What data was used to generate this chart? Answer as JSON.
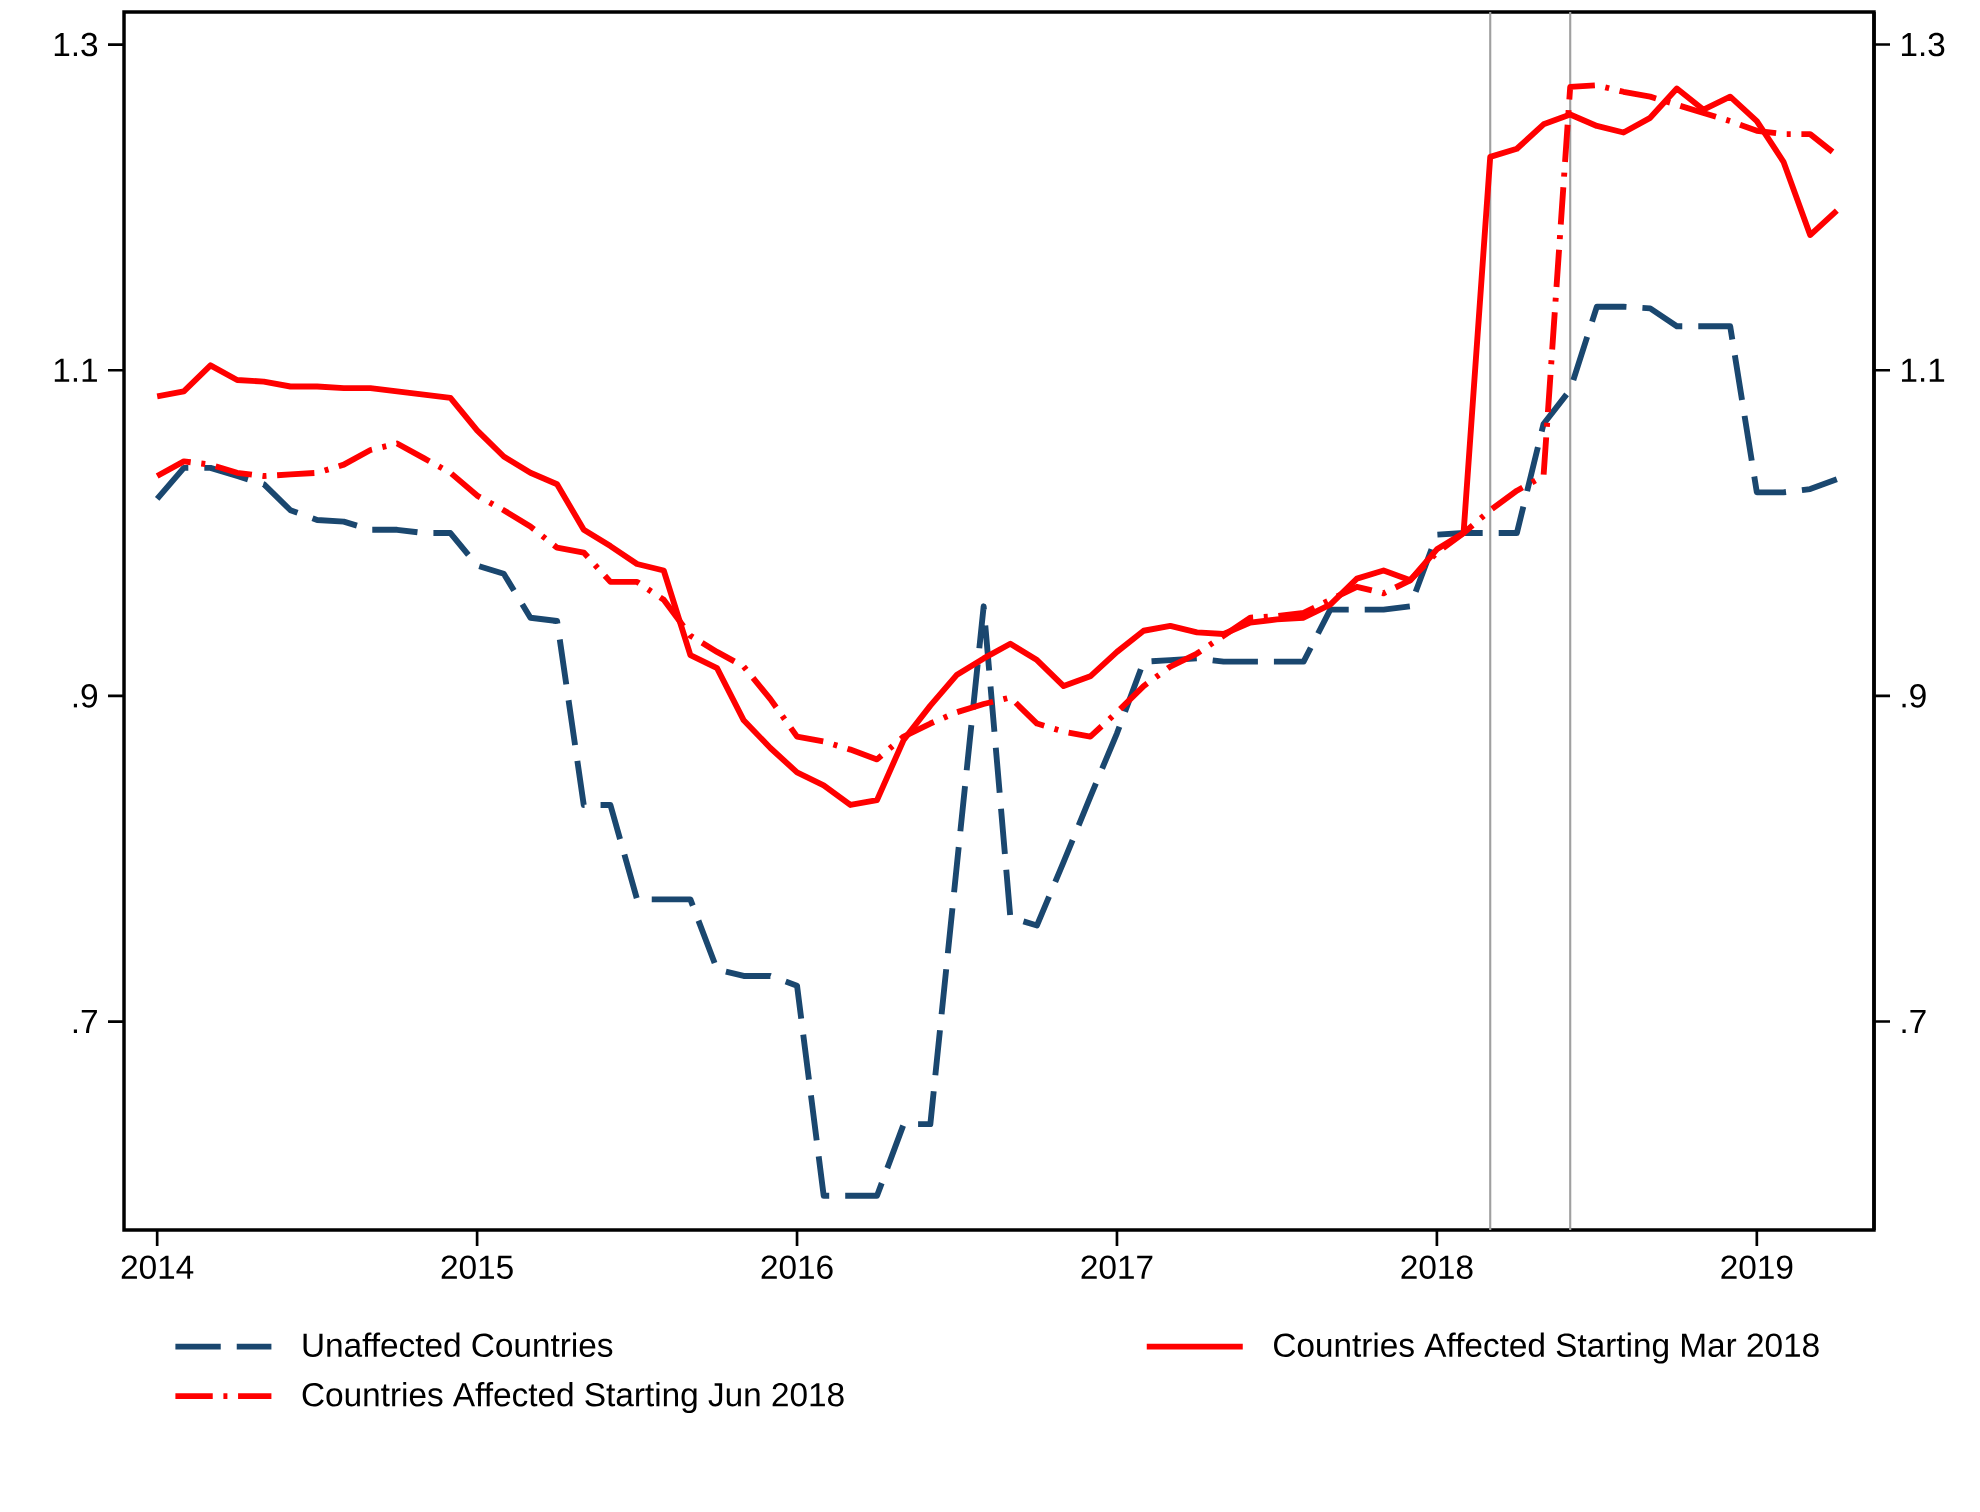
{
  "chart_data": {
    "type": "line",
    "x": [
      "2014-01",
      "2014-02",
      "2014-03",
      "2014-04",
      "2014-05",
      "2014-06",
      "2014-07",
      "2014-08",
      "2014-09",
      "2014-10",
      "2014-11",
      "2014-12",
      "2015-01",
      "2015-02",
      "2015-03",
      "2015-04",
      "2015-05",
      "2015-06",
      "2015-07",
      "2015-08",
      "2015-09",
      "2015-10",
      "2015-11",
      "2015-12",
      "2016-01",
      "2016-02",
      "2016-03",
      "2016-04",
      "2016-05",
      "2016-06",
      "2016-07",
      "2016-08",
      "2016-09",
      "2016-10",
      "2016-11",
      "2016-12",
      "2017-01",
      "2017-02",
      "2017-03",
      "2017-04",
      "2017-05",
      "2017-06",
      "2017-07",
      "2017-08",
      "2017-09",
      "2017-10",
      "2017-11",
      "2017-12",
      "2018-01",
      "2018-02",
      "2018-03",
      "2018-04",
      "2018-05",
      "2018-06",
      "2018-07",
      "2018-08",
      "2018-09",
      "2018-10",
      "2018-11",
      "2018-12",
      "2019-01",
      "2019-02",
      "2019-03",
      "2019-04"
    ],
    "series": [
      {
        "name": "Unaffected Countries",
        "color": "#1a476f",
        "line_style": "dashed",
        "values": [
          1.021,
          1.04,
          1.04,
          1.035,
          1.03,
          1.014,
          1.008,
          1.007,
          1.002,
          1.002,
          1.0,
          1.0,
          0.98,
          0.975,
          0.948,
          0.946,
          0.833,
          0.833,
          0.775,
          0.775,
          0.775,
          0.732,
          0.728,
          0.728,
          0.722,
          0.593,
          0.593,
          0.593,
          0.637,
          0.637,
          0.797,
          0.955,
          0.764,
          0.759,
          0.798,
          0.838,
          0.877,
          0.921,
          0.922,
          0.923,
          0.921,
          0.921,
          0.921,
          0.921,
          0.953,
          0.953,
          0.953,
          0.955,
          0.999,
          1.0,
          1.0,
          1.0,
          1.067,
          1.088,
          1.139,
          1.139,
          1.138,
          1.127,
          1.127,
          1.127,
          1.025,
          1.025,
          1.027,
          1.033
        ]
      },
      {
        "name": "Countries Affected Starting Mar 2018",
        "color": "#ff0000",
        "line_style": "solid",
        "values": [
          1.084,
          1.087,
          1.103,
          1.094,
          1.093,
          1.09,
          1.09,
          1.089,
          1.089,
          1.087,
          1.085,
          1.083,
          1.063,
          1.047,
          1.037,
          1.03,
          1.002,
          0.992,
          0.981,
          0.977,
          0.925,
          0.917,
          0.885,
          0.868,
          0.853,
          0.845,
          0.833,
          0.836,
          0.873,
          0.894,
          0.913,
          0.923,
          0.932,
          0.922,
          0.906,
          0.912,
          0.927,
          0.94,
          0.943,
          0.939,
          0.938,
          0.945,
          0.947,
          0.948,
          0.956,
          0.972,
          0.977,
          0.971,
          0.99,
          1.0,
          1.231,
          1.236,
          1.251,
          1.257,
          1.25,
          1.246,
          1.255,
          1.273,
          1.26,
          1.268,
          1.253,
          1.228,
          1.183,
          1.198
        ]
      },
      {
        "name": "Countries Affected Starting Jun 2018",
        "color": "#ff0000",
        "line_style": "dashdot",
        "values": [
          1.035,
          1.044,
          1.042,
          1.037,
          1.035,
          1.036,
          1.037,
          1.042,
          1.051,
          1.055,
          1.046,
          1.037,
          1.023,
          1.014,
          1.004,
          0.991,
          0.988,
          0.97,
          0.97,
          0.959,
          0.937,
          0.927,
          0.918,
          0.898,
          0.875,
          0.872,
          0.867,
          0.861,
          0.875,
          0.883,
          0.89,
          0.895,
          0.899,
          0.883,
          0.878,
          0.875,
          0.89,
          0.906,
          0.918,
          0.926,
          0.937,
          0.948,
          0.949,
          0.951,
          0.959,
          0.967,
          0.963,
          0.971,
          0.988,
          1.0,
          1.014,
          1.026,
          1.035,
          1.274,
          1.275,
          1.271,
          1.268,
          1.263,
          1.258,
          1.253,
          1.247,
          1.245,
          1.245,
          1.232
        ]
      }
    ],
    "xlim": [
      "2013-11-24",
      "2019-05-13"
    ],
    "xticks": [
      "2014",
      "2015",
      "2016",
      "2017",
      "2018",
      "2019"
    ],
    "ylim": [
      0.572,
      1.32
    ],
    "yticks": [
      {
        "value": 0.7,
        "label": ".7"
      },
      {
        "value": 0.9,
        "label": ".9"
      },
      1.1,
      1.3
    ],
    "y2lim": [
      0.572,
      1.32
    ],
    "y2ticks": [
      {
        "value": 0.7,
        "label": ".7"
      },
      {
        "value": 0.9,
        "label": ".9"
      },
      1.1,
      1.3
    ],
    "ref_lines": [
      {
        "axis": "x",
        "value": "2018-03",
        "color": "#a0a0a0"
      },
      {
        "axis": "x",
        "value": "2018-06",
        "color": "#a0a0a0"
      }
    ],
    "legend": "bottom"
  }
}
